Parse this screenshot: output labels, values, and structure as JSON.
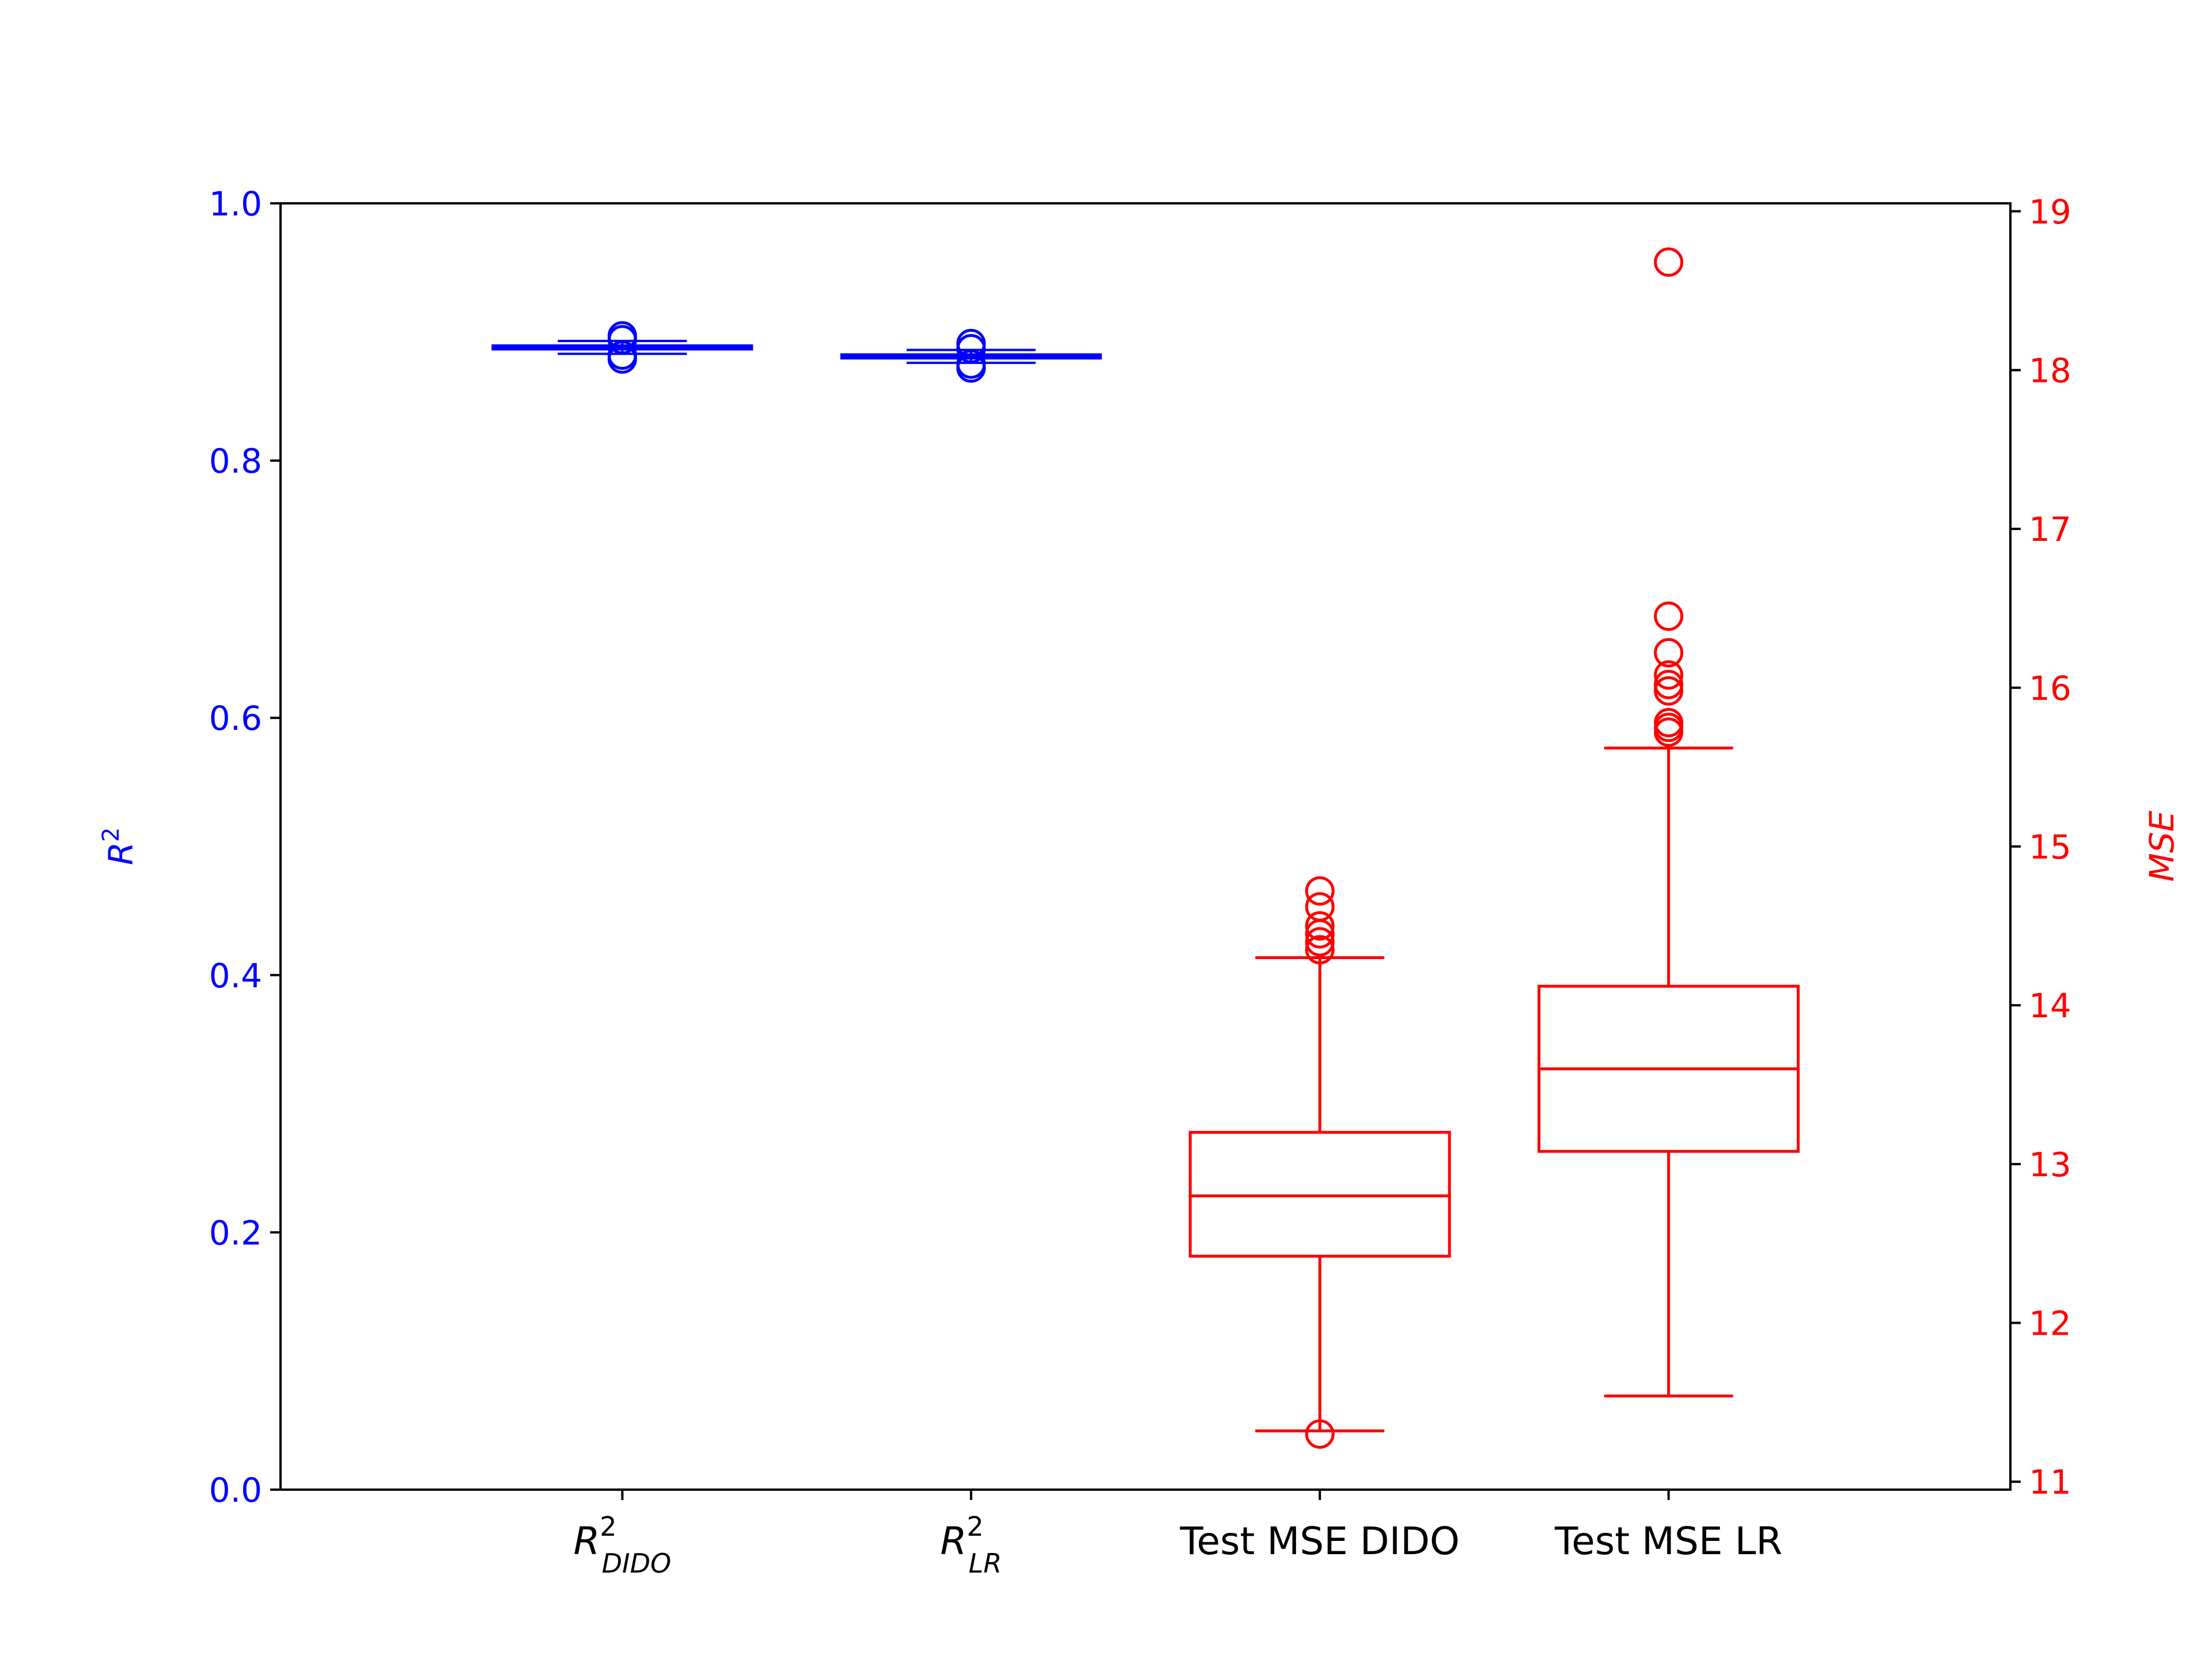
{
  "chart_data": {
    "type": "box",
    "categories": [
      {
        "base": "R",
        "sup": "2",
        "sub": "DIDO"
      },
      {
        "base": "R",
        "sup": "2",
        "sub": "LR"
      },
      {
        "text": "Test MSE DIDO"
      },
      {
        "text": "Test MSE LR"
      }
    ],
    "left_axis": {
      "label_base": "R",
      "label_sup": "2",
      "ylim": [
        0.0,
        1.0
      ],
      "ticks": [
        0.0,
        0.2,
        0.4,
        0.6,
        0.8,
        1.0
      ],
      "tick_labels": [
        "0.0",
        "0.2",
        "0.4",
        "0.6",
        "0.8",
        "1.0"
      ],
      "color": "#0000ff"
    },
    "right_axis": {
      "label": "MSE",
      "ylim": [
        10.95,
        19.05
      ],
      "ticks": [
        11,
        12,
        13,
        14,
        15,
        16,
        17,
        18,
        19
      ],
      "tick_labels": [
        "11",
        "12",
        "13",
        "14",
        "15",
        "16",
        "17",
        "18",
        "19"
      ],
      "color": "#ff0000"
    },
    "series": [
      {
        "axis": "left",
        "color": "#0000ff",
        "thin": true,
        "whisker_low": 0.883,
        "q1": 0.8865,
        "median": 0.888,
        "q3": 0.8895,
        "whisker_high": 0.893,
        "outliers": [
          0.879,
          0.882,
          0.894,
          0.897
        ]
      },
      {
        "axis": "left",
        "color": "#0000ff",
        "thin": true,
        "whisker_low": 0.876,
        "q1": 0.8795,
        "median": 0.881,
        "q3": 0.8825,
        "whisker_high": 0.886,
        "outliers": [
          0.872,
          0.875,
          0.887,
          0.891
        ]
      },
      {
        "axis": "right",
        "color": "#ff0000",
        "thin": false,
        "whisker_low": 11.32,
        "q1": 12.42,
        "median": 12.8,
        "q3": 13.2,
        "whisker_high": 14.3,
        "outliers": [
          11.3,
          14.35,
          14.4,
          14.45,
          14.5,
          14.62,
          14.72
        ]
      },
      {
        "axis": "right",
        "color": "#ff0000",
        "thin": false,
        "whisker_low": 11.54,
        "q1": 13.08,
        "median": 13.6,
        "q3": 14.12,
        "whisker_high": 15.62,
        "outliers": [
          15.72,
          15.75,
          15.78,
          15.98,
          16.02,
          16.08,
          16.22,
          16.45,
          18.68
        ]
      }
    ],
    "grid": false,
    "legend": "none"
  }
}
